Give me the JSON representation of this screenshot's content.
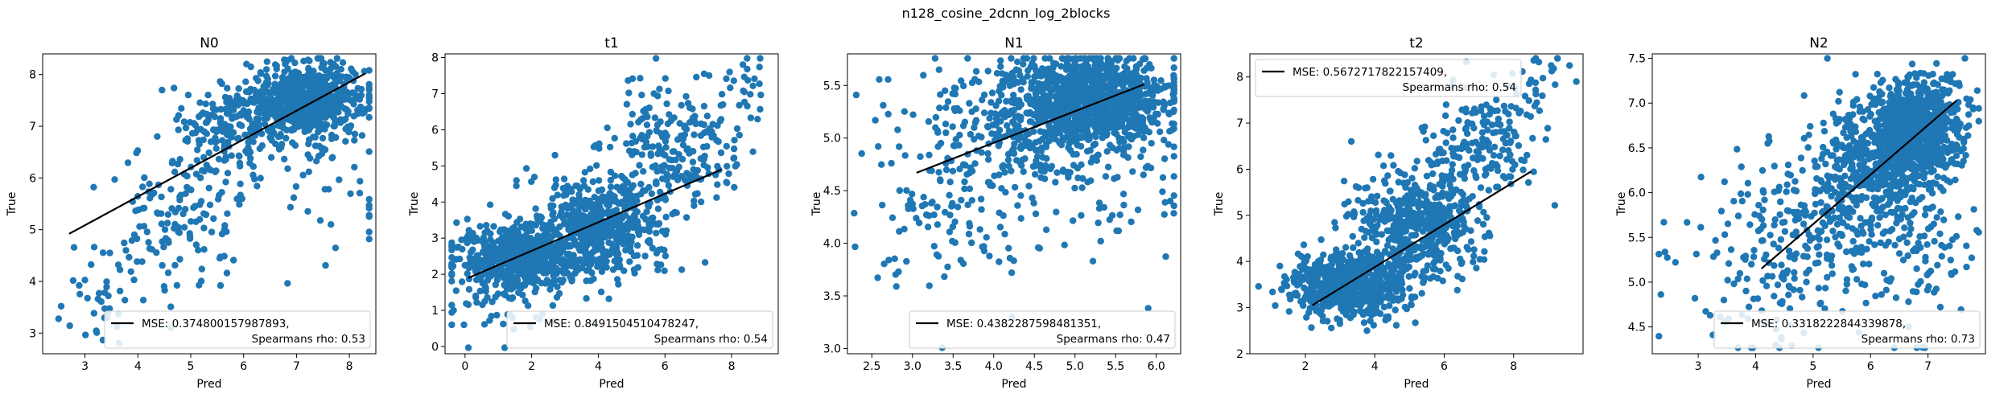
{
  "figure": {
    "suptitle": "n128_cosine_2dcnn_log_2blocks"
  },
  "colors": {
    "points": "#1f77b4",
    "fit_line": "#000000",
    "axes": "#000000",
    "legend_border": "#cccccc"
  },
  "chart_data": [
    {
      "type": "scatter",
      "title": "N0",
      "xlabel": "Pred",
      "ylabel": "True",
      "xlim": [
        2.2,
        8.5
      ],
      "ylim": [
        2.6,
        8.4
      ],
      "xticks": [
        3,
        4,
        5,
        6,
        7,
        8
      ],
      "yticks": [
        3,
        4,
        5,
        6,
        7,
        8
      ],
      "legend": {
        "placement": "lower-right",
        "line1": "MSE: 0.374800157987893,",
        "line2": "Spearmans rho: 0.53"
      },
      "fit_line": {
        "x": [
          2.7,
          8.3
        ],
        "y": [
          4.92,
          8.02
        ]
      },
      "clusters": [
        {
          "cx": 7.2,
          "cy": 7.5,
          "sx": 0.55,
          "sy": 0.35,
          "n": 700
        },
        {
          "cx": 5.8,
          "cy": 7.0,
          "sx": 0.45,
          "sy": 0.45,
          "n": 180
        },
        {
          "cx": 4.8,
          "cy": 5.2,
          "sx": 0.6,
          "sy": 0.7,
          "n": 130
        },
        {
          "cx": 3.4,
          "cy": 3.6,
          "sx": 0.5,
          "sy": 0.5,
          "n": 40
        },
        {
          "cx": 7.5,
          "cy": 6.0,
          "sx": 0.6,
          "sy": 0.9,
          "n": 50
        }
      ]
    },
    {
      "type": "scatter",
      "title": "t1",
      "xlabel": "Pred",
      "ylabel": "True",
      "xlim": [
        -0.6,
        9.4
      ],
      "ylim": [
        -0.2,
        8.1
      ],
      "xticks": [
        0,
        2,
        4,
        6,
        8
      ],
      "yticks": [
        0,
        1,
        2,
        3,
        4,
        5,
        6,
        7,
        8
      ],
      "legend": {
        "placement": "lower-right",
        "line1": "MSE: 0.8491504510478247,",
        "line2": "Spearmans rho: 0.54"
      },
      "fit_line": {
        "x": [
          0.1,
          7.7
        ],
        "y": [
          1.9,
          4.9
        ]
      },
      "clusters": [
        {
          "cx": 1.8,
          "cy": 2.5,
          "sx": 1.0,
          "sy": 0.45,
          "n": 600
        },
        {
          "cx": 4.0,
          "cy": 3.3,
          "sx": 1.0,
          "sy": 0.7,
          "n": 500
        },
        {
          "cx": 6.3,
          "cy": 5.5,
          "sx": 1.0,
          "sy": 0.9,
          "n": 220
        },
        {
          "cx": 1.2,
          "cy": 1.2,
          "sx": 0.9,
          "sy": 0.6,
          "n": 60
        },
        {
          "cx": 8.3,
          "cy": 7.2,
          "sx": 0.5,
          "sy": 0.4,
          "n": 25
        }
      ]
    },
    {
      "type": "scatter",
      "title": "N1",
      "xlabel": "Pred",
      "ylabel": "True",
      "xlim": [
        2.2,
        6.3
      ],
      "ylim": [
        2.95,
        5.8
      ],
      "xticks": [
        2.5,
        3.0,
        3.5,
        4.0,
        4.5,
        5.0,
        5.5,
        6.0
      ],
      "yticks": [
        3.0,
        3.5,
        4.0,
        4.5,
        5.0,
        5.5
      ],
      "legend": {
        "placement": "lower-right",
        "line1": "MSE: 0.4382287598481351,",
        "line2": "Spearmans rho: 0.47"
      },
      "fit_line": {
        "x": [
          3.05,
          5.85
        ],
        "y": [
          4.67,
          5.51
        ]
      },
      "clusters": [
        {
          "cx": 5.2,
          "cy": 5.35,
          "sx": 0.5,
          "sy": 0.22,
          "n": 1000
        },
        {
          "cx": 4.2,
          "cy": 5.1,
          "sx": 0.7,
          "sy": 0.35,
          "n": 250
        },
        {
          "cx": 3.6,
          "cy": 4.4,
          "sx": 0.6,
          "sy": 0.5,
          "n": 120
        },
        {
          "cx": 5.5,
          "cy": 4.5,
          "sx": 0.5,
          "sy": 0.4,
          "n": 60
        }
      ]
    },
    {
      "type": "scatter",
      "title": "t2",
      "xlabel": "Pred",
      "ylabel": "True",
      "xlim": [
        0.4,
        10.0
      ],
      "ylim": [
        2.0,
        8.5
      ],
      "xticks": [
        2,
        4,
        6,
        8
      ],
      "yticks": [
        2,
        3,
        4,
        5,
        6,
        7,
        8
      ],
      "legend": {
        "placement": "upper-left",
        "line1": "MSE: 0.5672717822157409,",
        "line2": "Spearmans rho: 0.54"
      },
      "fit_line": {
        "x": [
          2.2,
          8.5
        ],
        "y": [
          3.05,
          5.95
        ]
      },
      "clusters": [
        {
          "cx": 3.2,
          "cy": 3.5,
          "sx": 0.8,
          "sy": 0.35,
          "n": 700
        },
        {
          "cx": 5.2,
          "cy": 4.8,
          "sx": 0.9,
          "sy": 0.6,
          "n": 500
        },
        {
          "cx": 7.0,
          "cy": 6.5,
          "sx": 0.8,
          "sy": 0.6,
          "n": 180
        },
        {
          "cx": 8.9,
          "cy": 7.9,
          "sx": 0.4,
          "sy": 0.3,
          "n": 25
        }
      ]
    },
    {
      "type": "scatter",
      "title": "N2",
      "xlabel": "Pred",
      "ylabel": "True",
      "xlim": [
        2.2,
        8.0
      ],
      "ylim": [
        4.2,
        7.55
      ],
      "xticks": [
        3,
        4,
        5,
        6,
        7
      ],
      "yticks": [
        4.5,
        5.0,
        5.5,
        6.0,
        6.5,
        7.0,
        7.5
      ],
      "legend": {
        "placement": "lower-right",
        "line1": "MSE: 0.3318222844339878,",
        "line2": "Spearmans rho: 0.73"
      },
      "fit_line": {
        "x": [
          4.1,
          7.5
        ],
        "y": [
          5.15,
          7.03
        ]
      },
      "clusters": [
        {
          "cx": 6.8,
          "cy": 6.7,
          "sx": 0.4,
          "sy": 0.3,
          "n": 800
        },
        {
          "cx": 6.0,
          "cy": 6.2,
          "sx": 0.55,
          "sy": 0.4,
          "n": 400
        },
        {
          "cx": 5.0,
          "cy": 5.6,
          "sx": 0.8,
          "sy": 0.5,
          "n": 200
        },
        {
          "cx": 3.8,
          "cy": 5.0,
          "sx": 0.7,
          "sy": 0.5,
          "n": 70
        },
        {
          "cx": 7.0,
          "cy": 5.2,
          "sx": 0.4,
          "sy": 0.5,
          "n": 60
        }
      ]
    }
  ]
}
